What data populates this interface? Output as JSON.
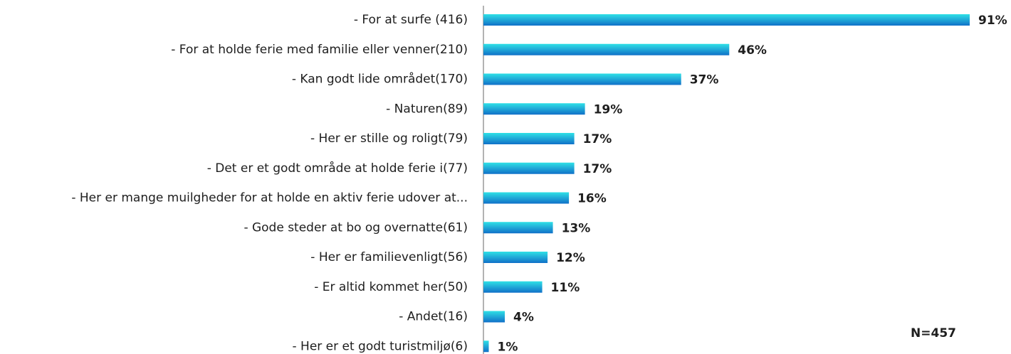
{
  "chart_data": {
    "type": "hbar",
    "categories": [
      "- For at surfe (416)",
      "- For at holde ferie med familie eller venner(210)",
      "- Kan godt lide området(170)",
      "- Naturen(89)",
      "- Her er stille og roligt(79)",
      "- Det er et godt område at holde ferie i(77)",
      "- Her er mange muilgheder for at holde en aktiv ferie udover at...",
      "- Gode steder at bo og overnatte(61)",
      "- Her er familievenligt(56)",
      "- Er altid kommet her(50)",
      "- Andet(16)",
      "- Her er et godt turistmiljø(6)"
    ],
    "values": [
      91,
      46,
      37,
      19,
      17,
      17,
      16,
      13,
      12,
      11,
      4,
      1
    ],
    "value_labels": [
      "91%",
      "46%",
      "37%",
      "19%",
      "17%",
      "17%",
      "16%",
      "13%",
      "12%",
      "11%",
      "4%",
      "1%"
    ],
    "color": "#1aa3d9",
    "annotation": "N=457"
  }
}
